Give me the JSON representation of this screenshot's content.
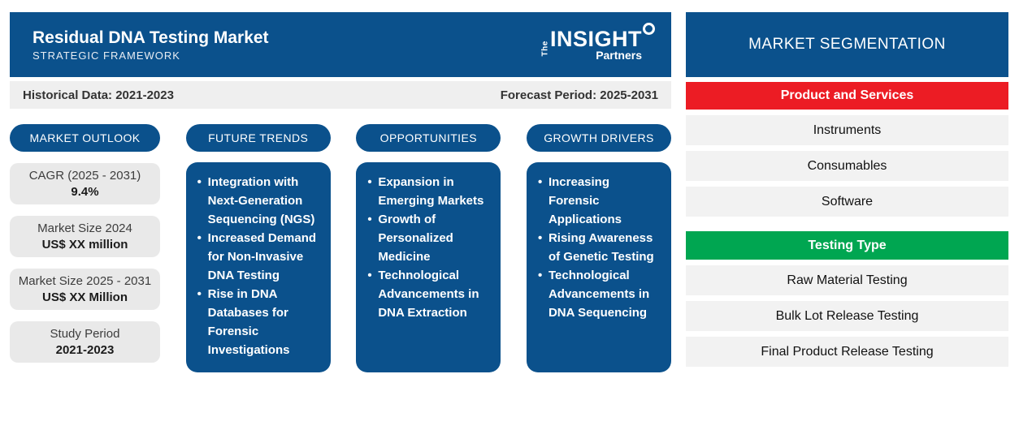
{
  "header": {
    "title": "Residual DNA Testing Market",
    "subtitle": "STRATEGIC FRAMEWORK",
    "logo_the": "The",
    "logo_insight": "INSIGHT",
    "logo_partners": "Partners"
  },
  "period_bar": {
    "historical": "Historical Data: 2021-2023",
    "forecast": "Forecast Period: 2025-2031"
  },
  "market_outlook": {
    "label": "MARKET OUTLOOK",
    "stats": [
      {
        "label": "CAGR (2025 - 2031)",
        "value": "9.4%"
      },
      {
        "label": "Market Size 2024",
        "value": "US$ XX million"
      },
      {
        "label": "Market Size 2025 - 2031",
        "value": "US$ XX Million"
      },
      {
        "label": "Study Period",
        "value": "2021-2023"
      }
    ]
  },
  "columns": [
    {
      "label": "FUTURE TRENDS",
      "items": [
        "Integration with Next-Generation Sequencing (NGS)",
        "Increased Demand for Non-Invasive DNA Testing",
        "Rise in DNA Databases for Forensic Investigations"
      ]
    },
    {
      "label": "OPPORTUNITIES",
      "items": [
        "Expansion in Emerging Markets",
        "Growth of Personalized Medicine",
        "Technological Advancements in DNA Extraction"
      ]
    },
    {
      "label": "GROWTH DRIVERS",
      "items": [
        "Increasing Forensic Applications",
        "Rising Awareness of Genetic Testing",
        "Technological Advancements in DNA Sequencing"
      ]
    }
  ],
  "segmentation": {
    "title": "MARKET SEGMENTATION",
    "groups": [
      {
        "label": "Product and Services",
        "color": "#EC1C24",
        "items": [
          "Instruments",
          "Consumables",
          "Software"
        ]
      },
      {
        "label": "Testing Type",
        "color": "#00A651",
        "items": [
          "Raw Material Testing",
          "Bulk Lot Release Testing",
          "Final Product Release Testing"
        ]
      }
    ]
  },
  "colors": {
    "brand_blue": "#0B518C",
    "red": "#EC1C24",
    "green": "#00A651",
    "row_gray": "#F2F2F2",
    "stat_gray": "#E9E9E9"
  }
}
